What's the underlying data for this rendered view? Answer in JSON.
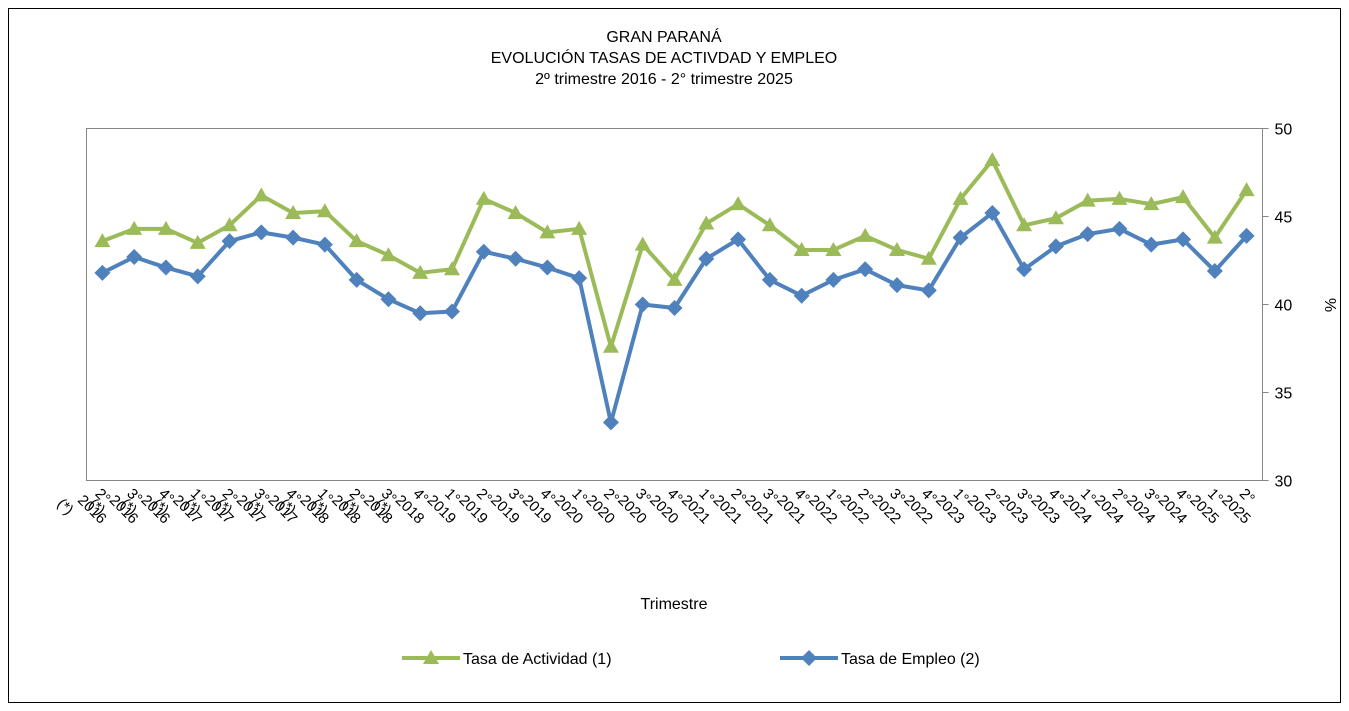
{
  "chart_data": {
    "type": "line",
    "title": [
      "GRAN PARANÁ",
      "EVOLUCIÓN TASAS DE ACTIVDAD Y EMPLEO",
      "2º trimestre 2016 - 2° trimestre 2025"
    ],
    "x_label": "Trimestre",
    "y_label": "%",
    "categories": [
      "2° 2016 (*)",
      "3° 2016 (*)",
      "4° 2016 (*)",
      "1° 2017 (*)",
      "2° 2017 (*)",
      "3° 2017 (*)",
      "4° 2017 (*)",
      "1° 2018 (*)",
      "2° 2018 (*)",
      "3° 2018 (*)",
      "4° 2018 (*)",
      "1° 2019",
      "2° 2019",
      "3° 2019",
      "4° 2019",
      "1° 2020",
      "2° 2020",
      "3° 2020",
      "4° 2020",
      "1° 2021",
      "2° 2021",
      "3° 2021",
      "4° 2021",
      "1° 2022",
      "2° 2022",
      "3° 2022",
      "4° 2022",
      "1° 2023",
      "2° 2023",
      "3° 2023",
      "4° 2023",
      "1° 2024",
      "2° 2024",
      "3° 2024",
      "4° 2024",
      "1° 2025",
      "2° 2025"
    ],
    "series": [
      {
        "name": "Tasa de Actividad (1)",
        "color": "#9bbb59",
        "marker": "triangle",
        "values": [
          43.6,
          44.3,
          44.3,
          43.5,
          44.5,
          46.2,
          45.2,
          45.3,
          43.6,
          42.8,
          41.8,
          42.0,
          46.0,
          45.2,
          44.1,
          44.3,
          37.6,
          43.4,
          41.4,
          44.6,
          45.7,
          44.5,
          43.1,
          43.1,
          43.9,
          43.1,
          42.6,
          46.0,
          48.2,
          44.5,
          44.9,
          45.9,
          46.0,
          45.7,
          46.1,
          43.8,
          46.5
        ]
      },
      {
        "name": "Tasa de Empleo (2)",
        "color": "#4f81bd",
        "marker": "diamond",
        "values": [
          41.8,
          42.7,
          42.1,
          41.6,
          43.6,
          44.1,
          43.8,
          43.4,
          41.4,
          40.3,
          39.5,
          39.6,
          43.0,
          42.6,
          42.1,
          41.5,
          33.3,
          40.0,
          39.8,
          42.6,
          43.7,
          41.4,
          40.5,
          41.4,
          42.0,
          41.1,
          40.8,
          43.8,
          45.2,
          42.0,
          43.3,
          44.0,
          44.3,
          43.4,
          43.7,
          41.9,
          43.9
        ]
      }
    ],
    "ylim": [
      30,
      50
    ],
    "yticks": [
      30,
      35,
      40,
      45,
      50
    ],
    "y_axis_side": "right",
    "grid": false,
    "legend": "bottom"
  }
}
